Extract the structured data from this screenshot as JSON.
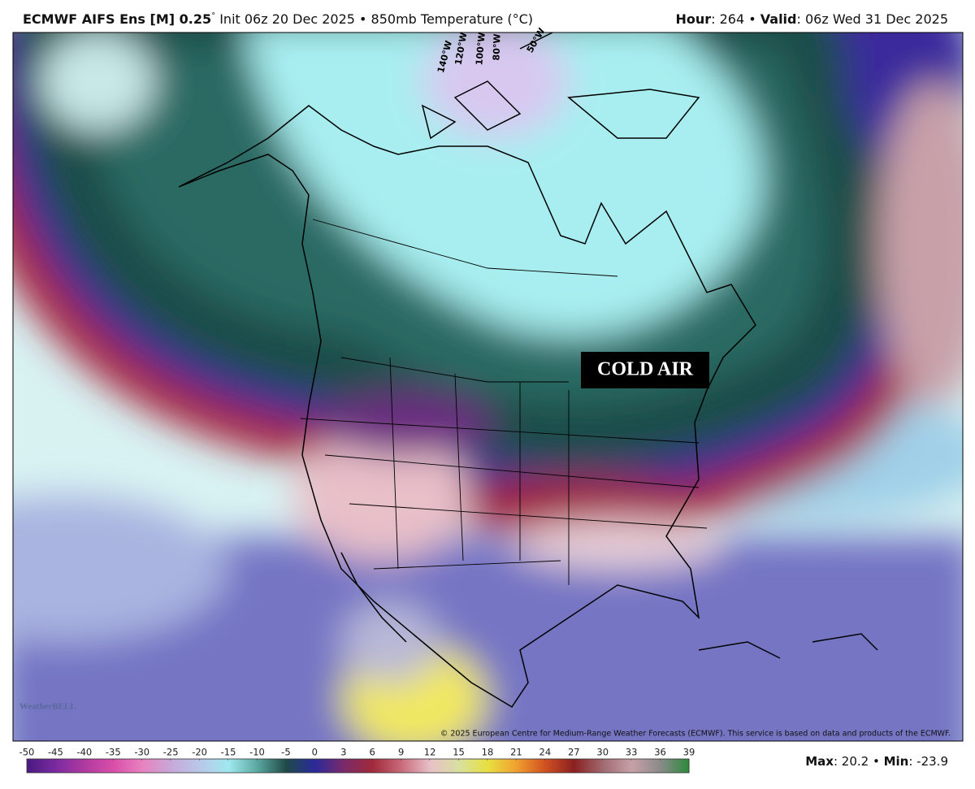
{
  "header": {
    "model": "ECMWF AIFS Ens [M] 0.25",
    "degree": "°",
    "init": "Init 06z 20 Dec 2025 • 850mb Temperature (°C)",
    "hour_label": "Hour",
    "hour": ": 264 •",
    "valid_label": "Valid",
    "valid": ": 06z Wed 31 Dec 2025"
  },
  "map": {
    "annotation": "COLD AIR",
    "longitudes": [
      "140°W",
      "120°W",
      "100°W",
      "80°W",
      "50°W"
    ],
    "logo": "WeatherBELL",
    "copyright": "© 2025 European Centre for Medium-Range Weather Forecasts (ECMWF). This service is based on data and products of the ECMWF."
  },
  "colorbar": {
    "ticks": [
      -50,
      -45,
      -40,
      -35,
      -30,
      -25,
      -20,
      -15,
      -10,
      -5,
      0,
      3,
      6,
      9,
      12,
      15,
      18,
      21,
      24,
      27,
      30,
      33,
      36,
      39
    ],
    "colors": [
      "#4a1a80",
      "#7a2aa0",
      "#b03aa0",
      "#d84ea8",
      "#e882c0",
      "#c7a8d8",
      "#b8c8e8",
      "#a0e8f0",
      "#5aa8a0",
      "#1f4a48",
      "#2a2a9a",
      "#7a2a6a",
      "#a02a3a",
      "#c86a7a",
      "#e8c0c8",
      "#d8e0a0",
      "#e8e040",
      "#f0a030",
      "#d05020",
      "#8a2020",
      "#a06a70",
      "#c8a0a8",
      "#8a8a8a",
      "#2a8a3a"
    ]
  },
  "footer": {
    "max_label": "Max",
    "max": ": 20.2 •",
    "min_label": "Min",
    "min": ": -23.9"
  }
}
